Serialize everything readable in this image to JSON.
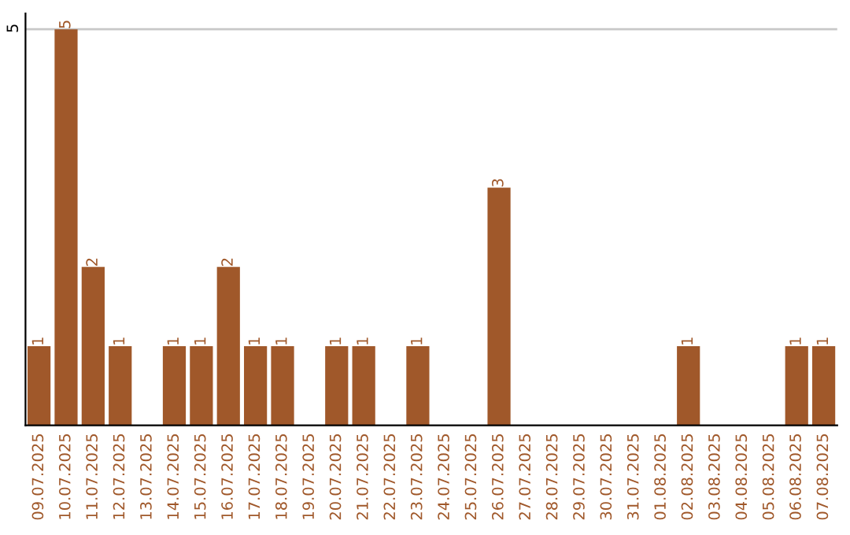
{
  "chart_data": {
    "type": "bar",
    "categories": [
      "09.07.2025",
      "10.07.2025",
      "11.07.2025",
      "12.07.2025",
      "13.07.2025",
      "14.07.2025",
      "15.07.2025",
      "16.07.2025",
      "17.07.2025",
      "18.07.2025",
      "19.07.2025",
      "20.07.2025",
      "21.07.2025",
      "22.07.2025",
      "23.07.2025",
      "24.07.2025",
      "25.07.2025",
      "26.07.2025",
      "27.07.2025",
      "28.07.2025",
      "29.07.2025",
      "30.07.2025",
      "31.07.2025",
      "01.08.2025",
      "02.08.2025",
      "03.08.2025",
      "04.08.2025",
      "05.08.2025",
      "06.08.2025",
      "07.08.2025"
    ],
    "values": [
      1,
      5,
      2,
      1,
      0,
      1,
      1,
      2,
      1,
      1,
      0,
      1,
      1,
      0,
      1,
      0,
      0,
      3,
      0,
      0,
      0,
      0,
      0,
      0,
      1,
      0,
      0,
      0,
      1,
      1
    ],
    "value_labels": [
      "1",
      "5",
      "2",
      "1",
      null,
      "1",
      "1",
      "2",
      "1",
      "1",
      null,
      "1",
      "1",
      null,
      "1",
      null,
      null,
      "3",
      null,
      null,
      null,
      null,
      null,
      null,
      "1",
      null,
      null,
      null,
      "1",
      "1"
    ],
    "color": "#a0582a",
    "ylim": [
      0,
      5.2
    ],
    "yticks": [
      5
    ],
    "grid": "y"
  }
}
